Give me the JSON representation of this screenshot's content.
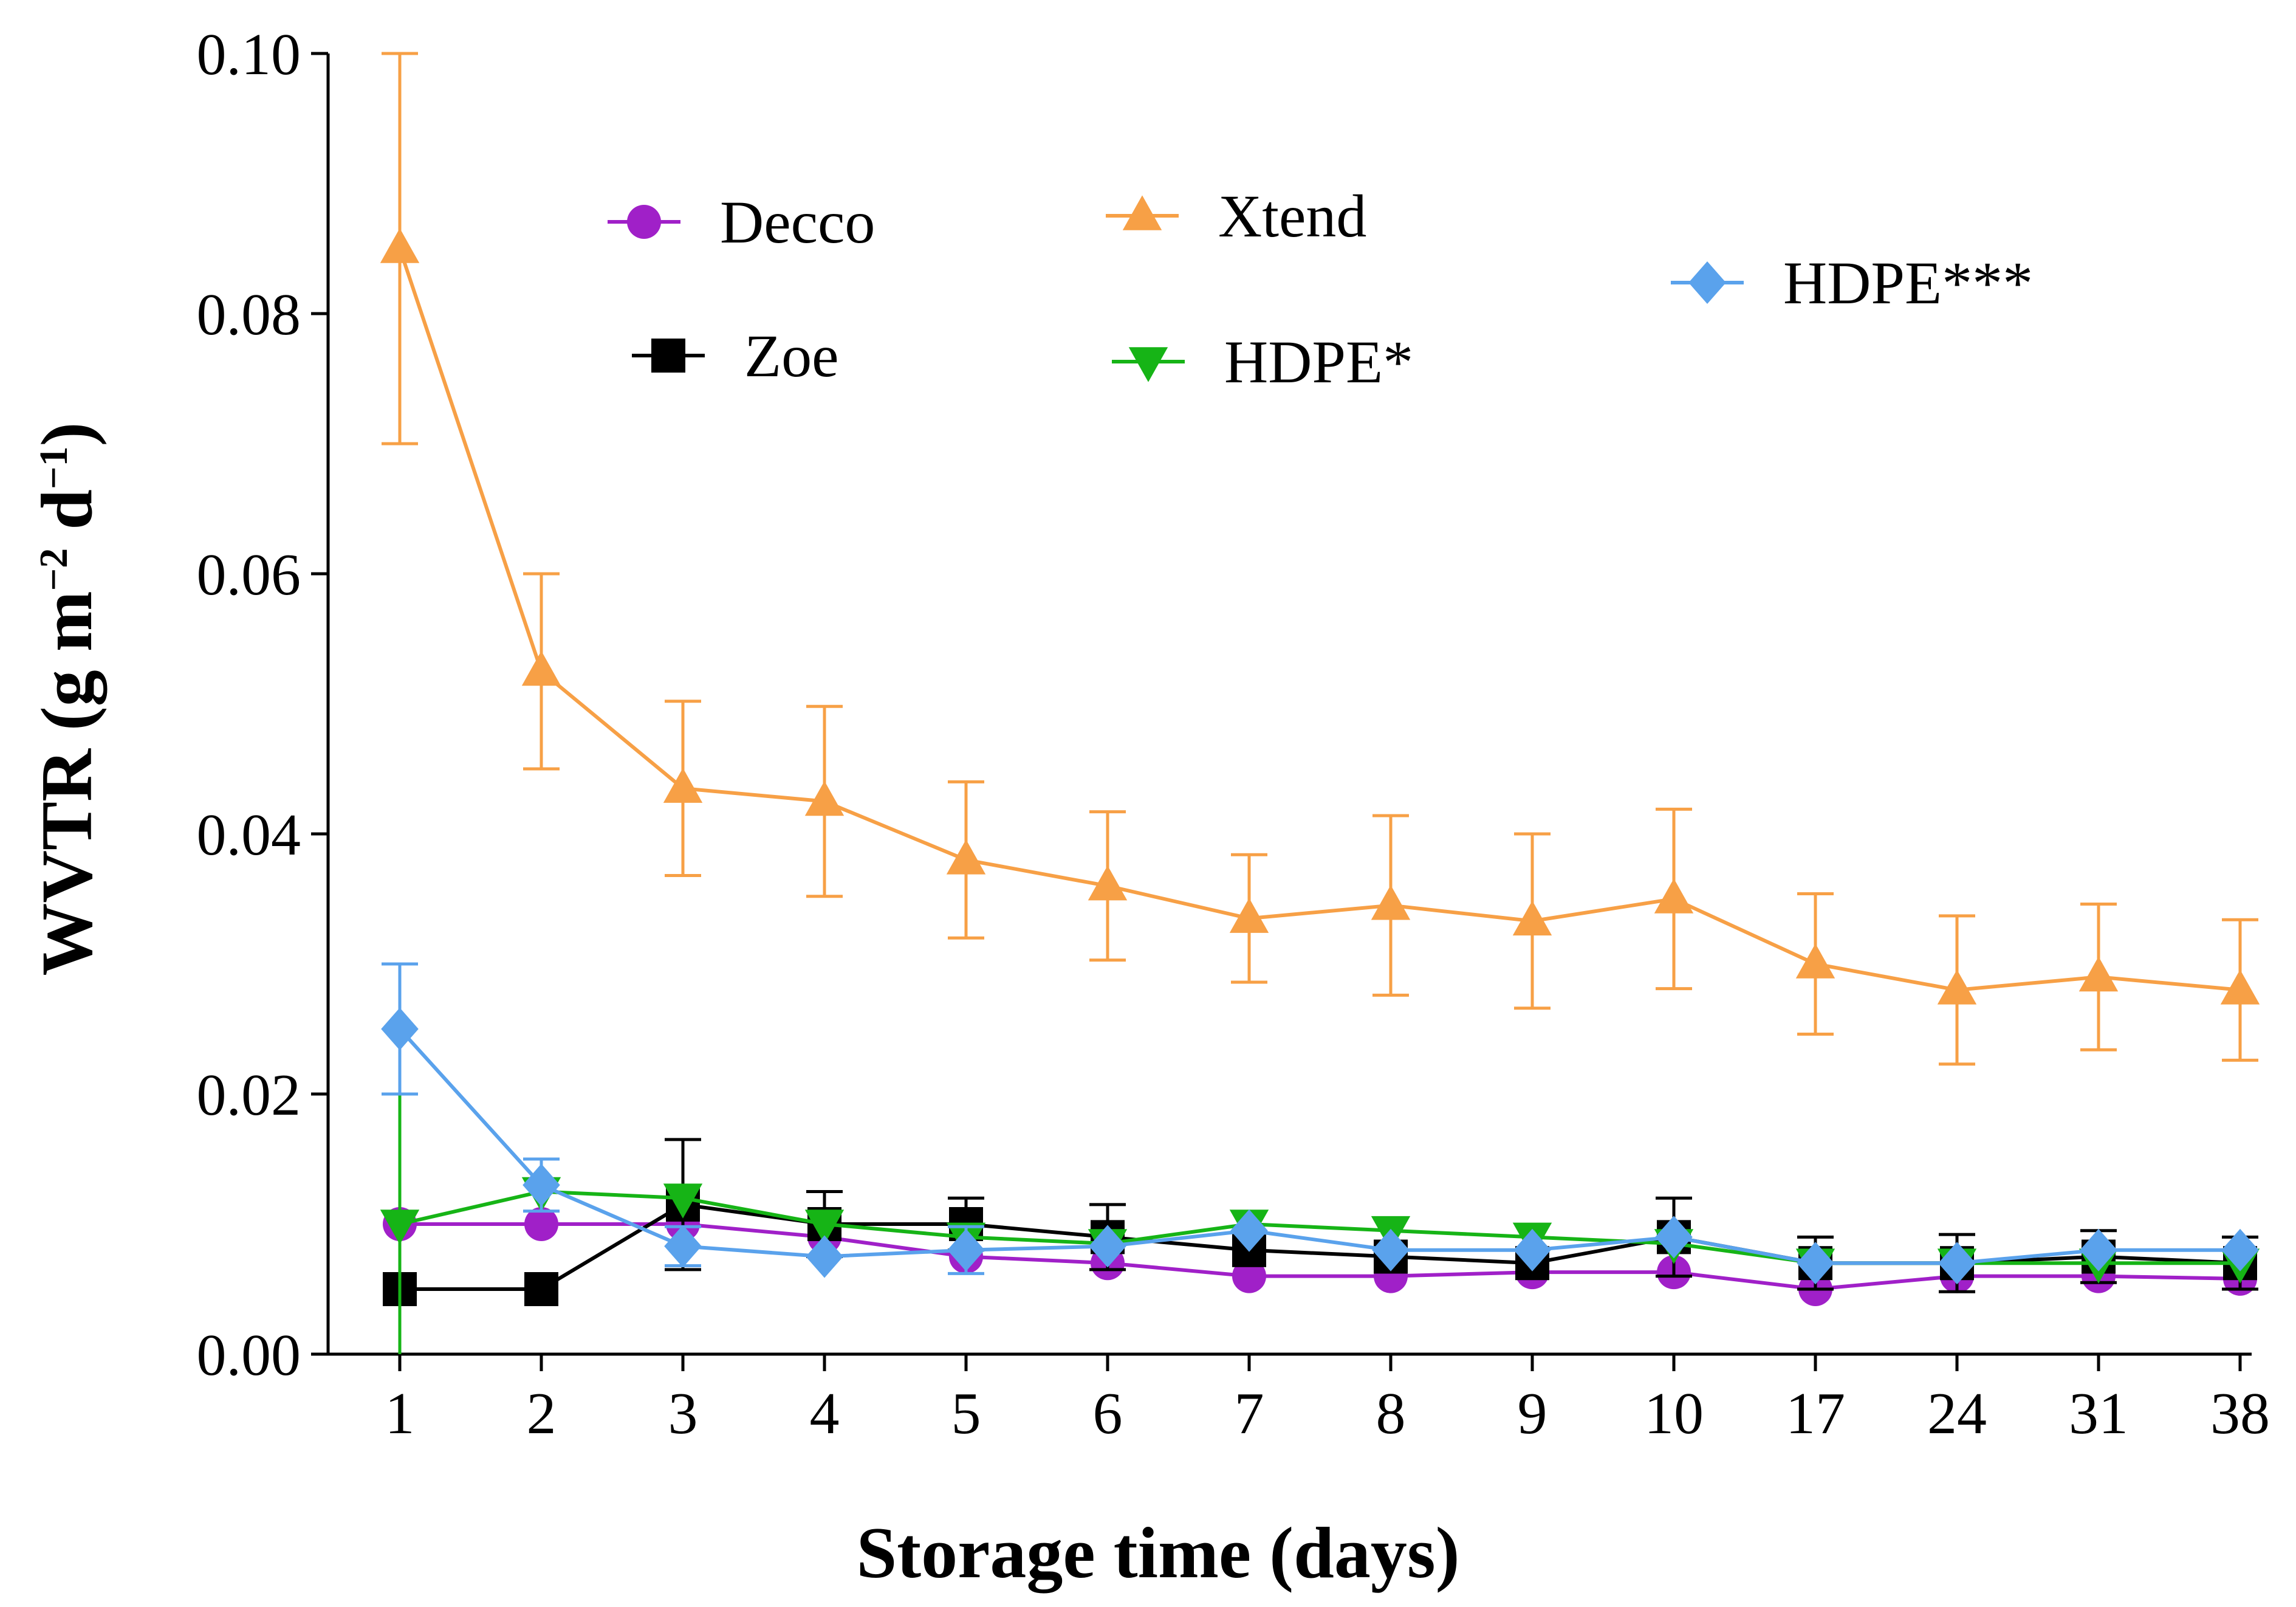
{
  "chart_data": {
    "type": "line",
    "title": "",
    "xlabel": "Storage time (days)",
    "ylabel_parts": {
      "main": "WVTR",
      "open": "(g m",
      "exp1": "−2",
      "mid": " d",
      "exp2": "−1",
      "close": ")"
    },
    "categories": [
      "1",
      "2",
      "3",
      "4",
      "5",
      "6",
      "7",
      "8",
      "9",
      "10",
      "17",
      "24",
      "31",
      "38"
    ],
    "ylim": [
      0,
      0.1
    ],
    "yticks": [
      0.0,
      0.02,
      0.04,
      0.06,
      0.08,
      0.1
    ],
    "ytick_labels": [
      "0.00",
      "0.02",
      "0.04",
      "0.06",
      "0.08",
      "0.10"
    ],
    "grid": false,
    "legend_position": "top",
    "series": [
      {
        "name": "Decco",
        "color": "#a020c8",
        "marker": "circle",
        "values": [
          0.01,
          0.01,
          0.01,
          0.009,
          0.0075,
          0.007,
          0.006,
          0.006,
          0.0063,
          0.0063,
          0.005,
          0.006,
          0.006,
          0.0058
        ],
        "errors": [
          0,
          0,
          0,
          0,
          0,
          0,
          0,
          0,
          0,
          0,
          0,
          0,
          0,
          0
        ]
      },
      {
        "name": "Zoe",
        "color": "#000000",
        "marker": "square",
        "values": [
          0.005,
          0.005,
          0.0115,
          0.01,
          0.01,
          0.009,
          0.008,
          0.0075,
          0.007,
          0.009,
          0.007,
          0.007,
          0.0075,
          0.007
        ],
        "errors": [
          0,
          0,
          0.005,
          0.0025,
          0.002,
          0.0025,
          0,
          0,
          0,
          0.003,
          0.002,
          0.0022,
          0.002,
          0.002
        ]
      },
      {
        "name": "Xtend",
        "color": "#f7a046",
        "marker": "triangle-up",
        "values": [
          0.085,
          0.0525,
          0.0435,
          0.0425,
          0.038,
          0.036,
          0.0335,
          0.0345,
          0.0333,
          0.035,
          0.03,
          0.028,
          0.029,
          0.028
        ],
        "errors": [
          0.015,
          0.0075,
          0.0067,
          0.0073,
          0.006,
          0.0057,
          0.0049,
          0.0069,
          0.0067,
          0.0069,
          0.0054,
          0.0057,
          0.0056,
          0.0054
        ]
      },
      {
        "name": "HDPE*",
        "color": "#16b416",
        "marker": "triangle-down",
        "values": [
          0.01,
          0.0125,
          0.012,
          0.01,
          0.009,
          0.0085,
          0.01,
          0.0095,
          0.009,
          0.0085,
          0.007,
          0.007,
          0.007,
          0.007
        ],
        "errors": [
          0.01,
          0,
          0,
          0,
          0,
          0,
          0,
          0,
          0,
          0,
          0,
          0,
          0,
          0
        ]
      },
      {
        "name": "HDPE***",
        "color": "#5aa2ec",
        "marker": "diamond",
        "values": [
          0.025,
          0.013,
          0.0083,
          0.0075,
          0.008,
          0.0083,
          0.0095,
          0.008,
          0.008,
          0.009,
          0.007,
          0.007,
          0.008,
          0.008
        ],
        "errors": [
          0.005,
          0.002,
          0.0015,
          0,
          0.0018,
          0,
          0,
          0,
          0,
          0,
          0,
          0,
          0,
          0
        ]
      }
    ]
  }
}
